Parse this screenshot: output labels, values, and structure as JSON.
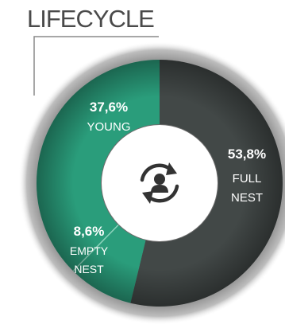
{
  "header": {
    "title": "LIFECYCLE"
  },
  "chart_data": {
    "type": "pie",
    "title": "LIFECYCLE",
    "slices": [
      {
        "name": "YOUNG",
        "pct_label": "37,6%",
        "value": 37.6,
        "color": "#2a9d7b"
      },
      {
        "name_lines": [
          "FULL",
          "NEST"
        ],
        "pct_label": "53,8%",
        "value": 53.8,
        "color": "#424847"
      },
      {
        "name_lines": [
          "EMPTY",
          "NEST"
        ],
        "pct_label": "8,6%",
        "value": 8.6,
        "color": "#2a9d7b"
      }
    ]
  },
  "center_icon": "person-refresh-icon"
}
